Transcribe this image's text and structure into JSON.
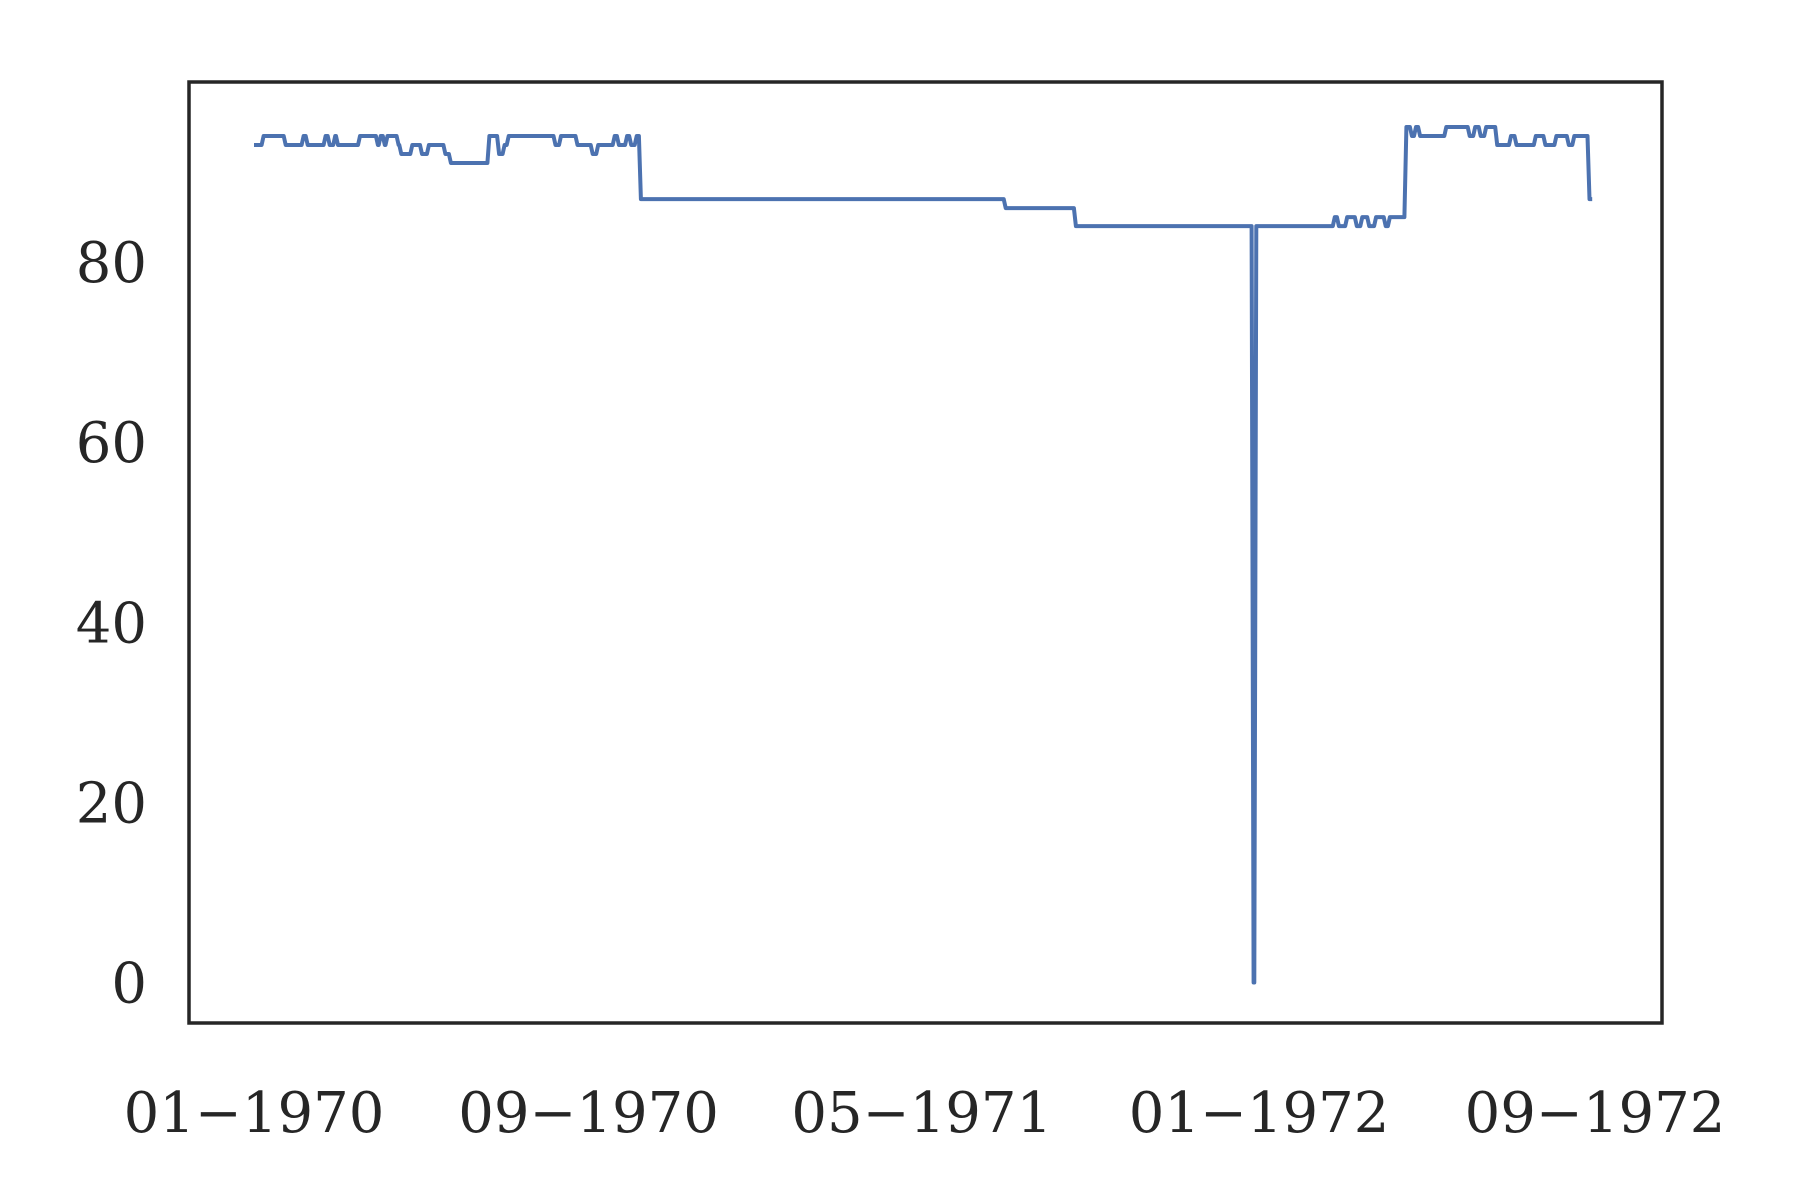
{
  "chart_data": {
    "type": "line",
    "title": "",
    "xlabel": "",
    "ylabel": "",
    "x_axis": {
      "type": "date",
      "range": [
        "1970-01-01",
        "1972-10-15"
      ],
      "ticks": [
        {
          "value": "1970-01-01",
          "label": "01−1970"
        },
        {
          "value": "1970-09-01",
          "label": "09−1970"
        },
        {
          "value": "1971-05-01",
          "label": "05−1971"
        },
        {
          "value": "1972-01-01",
          "label": "01−1972"
        },
        {
          "value": "1972-09-01",
          "label": "09−1972"
        }
      ]
    },
    "y_axis": {
      "range": [
        -4.5,
        100
      ],
      "ticks": [
        {
          "value": 0,
          "label": "0"
        },
        {
          "value": 20,
          "label": "20"
        },
        {
          "value": 40,
          "label": "40"
        },
        {
          "value": 60,
          "label": "60"
        },
        {
          "value": 80,
          "label": "80"
        }
      ]
    },
    "grid": false,
    "legend": "none",
    "series": [
      {
        "color": "#4c72b0",
        "step": true,
        "points": [
          [
            "1970-01-01",
            93
          ],
          [
            "1970-01-08",
            94
          ],
          [
            "1970-01-24",
            93
          ],
          [
            "1970-02-06",
            94
          ],
          [
            "1970-02-09",
            93
          ],
          [
            "1970-02-22",
            94
          ],
          [
            "1970-02-25",
            93
          ],
          [
            "1970-03-01",
            94
          ],
          [
            "1970-03-03",
            93
          ],
          [
            "1970-03-19",
            94
          ],
          [
            "1970-04-01",
            93
          ],
          [
            "1970-04-03",
            94
          ],
          [
            "1970-04-06",
            93
          ],
          [
            "1970-04-08",
            94
          ],
          [
            "1970-04-16",
            93
          ],
          [
            "1970-04-18",
            92
          ],
          [
            "1970-04-26",
            93
          ],
          [
            "1970-05-03",
            92
          ],
          [
            "1970-05-08",
            93
          ],
          [
            "1970-05-20",
            92
          ],
          [
            "1970-05-24",
            91
          ],
          [
            "1970-06-21",
            94
          ],
          [
            "1970-06-28",
            92
          ],
          [
            "1970-07-02",
            93
          ],
          [
            "1970-07-05",
            94
          ],
          [
            "1970-08-08",
            93
          ],
          [
            "1970-08-12",
            94
          ],
          [
            "1970-08-24",
            93
          ],
          [
            "1970-09-04",
            92
          ],
          [
            "1970-09-08",
            93
          ],
          [
            "1970-09-20",
            94
          ],
          [
            "1970-09-23",
            93
          ],
          [
            "1970-09-29",
            94
          ],
          [
            "1970-10-02",
            93
          ],
          [
            "1970-10-06",
            94
          ],
          [
            "1970-10-09",
            87
          ],
          [
            "1971-07-01",
            86
          ],
          [
            "1971-08-21",
            84
          ],
          [
            "1971-12-28",
            0
          ],
          [
            "1971-12-30",
            84
          ],
          [
            "1972-02-25",
            85
          ],
          [
            "1972-02-28",
            84
          ],
          [
            "1972-03-05",
            85
          ],
          [
            "1972-03-12",
            84
          ],
          [
            "1972-03-16",
            85
          ],
          [
            "1972-03-21",
            84
          ],
          [
            "1972-03-26",
            85
          ],
          [
            "1972-04-02",
            84
          ],
          [
            "1972-04-05",
            85
          ],
          [
            "1972-04-17",
            95
          ],
          [
            "1972-04-21",
            94
          ],
          [
            "1972-04-24",
            95
          ],
          [
            "1972-04-27",
            94
          ],
          [
            "1972-05-16",
            95
          ],
          [
            "1972-06-02",
            94
          ],
          [
            "1972-06-06",
            95
          ],
          [
            "1972-06-10",
            94
          ],
          [
            "1972-06-14",
            95
          ],
          [
            "1972-06-22",
            93
          ],
          [
            "1972-07-02",
            94
          ],
          [
            "1972-07-06",
            93
          ],
          [
            "1972-07-20",
            94
          ],
          [
            "1972-07-27",
            93
          ],
          [
            "1972-08-04",
            94
          ],
          [
            "1972-08-13",
            93
          ],
          [
            "1972-08-17",
            94
          ],
          [
            "1972-08-28",
            87
          ],
          [
            "1972-08-30",
            87
          ]
        ]
      }
    ]
  }
}
